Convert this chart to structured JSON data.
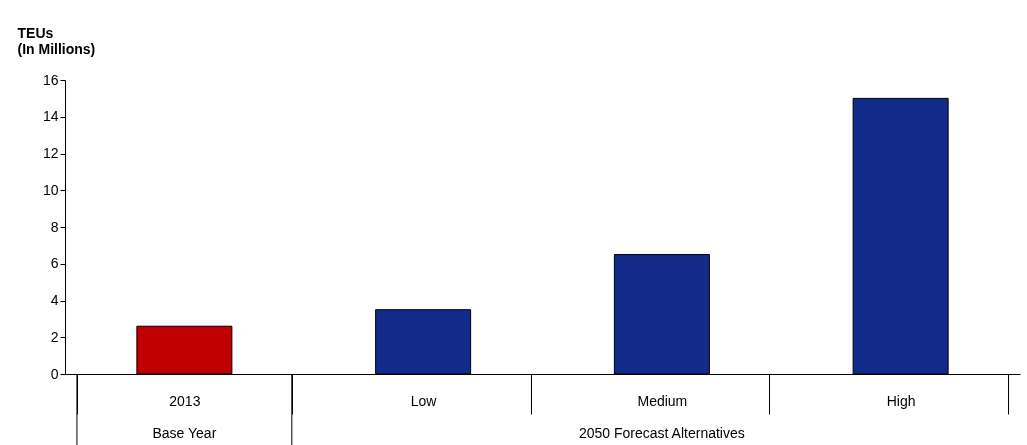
{
  "chart_data": {
    "type": "bar",
    "ylabel": "TEUs\n(In Millions)",
    "categories": [
      "2013",
      "Low",
      "Medium",
      "High"
    ],
    "values": [
      2.6,
      3.5,
      6.5,
      15.0
    ],
    "colors": [
      "#c00000",
      "#122b8a",
      "#122b8a",
      "#122b8a"
    ],
    "ylim": [
      0,
      16
    ],
    "yticks": [
      0,
      2,
      4,
      6,
      8,
      10,
      12,
      14,
      16
    ],
    "grid": false,
    "annotations": [
      "Base Year",
      "2050 Forecast Alternatives"
    ]
  }
}
